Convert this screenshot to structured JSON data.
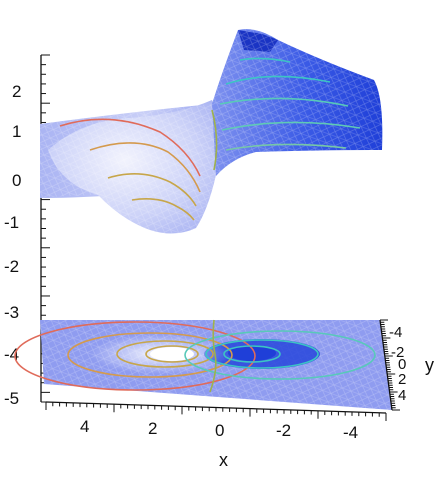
{
  "chart_data": {
    "type": "surface",
    "title": "",
    "xlabel": "x",
    "ylabel": "y",
    "zlabel": "",
    "x_ticks": [
      "4",
      "2",
      "0",
      "-2",
      "-4"
    ],
    "y_ticks": [
      "-4",
      "-2",
      "0",
      "2",
      "4"
    ],
    "z_ticks": [
      "2",
      "1",
      "0",
      "-1",
      "-2",
      "-3",
      "-4",
      "-5"
    ],
    "xlim": [
      -5,
      5
    ],
    "ylim": [
      -5,
      5
    ],
    "zlim": [
      -5,
      2.5
    ],
    "x_direction": "decreasing",
    "surface": {
      "description_of_shape": "dipole-like surface: peak near x=-1, trough near x=1",
      "peak": {
        "x": -1,
        "y": 0,
        "z": 2.4
      },
      "trough": {
        "x": 1,
        "y": 0,
        "z": -1.2
      },
      "base_level": 1.0
    },
    "contour_projection_z": -4,
    "contour_levels": [
      -1.0,
      -0.6,
      -0.3,
      0.0,
      0.3,
      0.6,
      1.0,
      1.5,
      2.0
    ],
    "colors": {
      "surface_high": "#1f3fd8",
      "surface_low": "#e6e8fb",
      "mesh": "#ffffff",
      "contour_warm": "#e05a5a",
      "contour_mid": "#c7a64a",
      "contour_cool": "#3cc4c4"
    }
  }
}
